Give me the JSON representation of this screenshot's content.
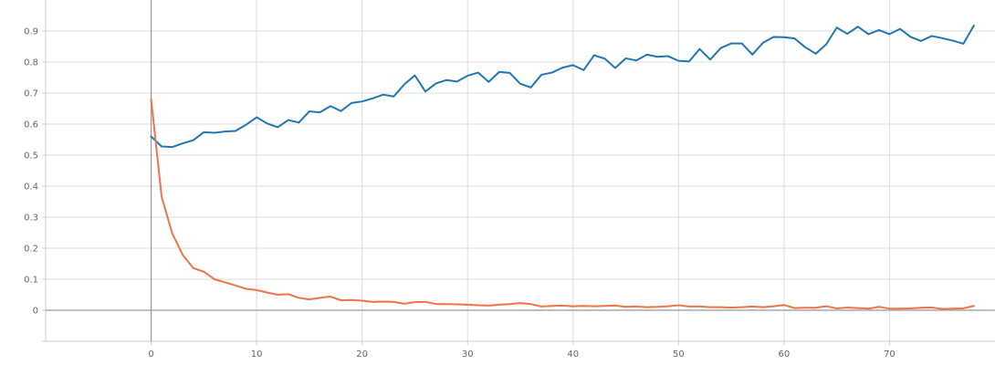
{
  "chart_data": {
    "type": "line",
    "title": "",
    "xlabel": "",
    "ylabel": "",
    "xlim": [
      -10,
      80
    ],
    "ylim": [
      -0.1,
      1.0
    ],
    "grid": true,
    "x_ticks": [
      0,
      10,
      20,
      30,
      40,
      50,
      60,
      70
    ],
    "y_ticks": [
      0,
      0.1,
      0.2,
      0.3,
      0.4,
      0.5,
      0.6,
      0.7,
      0.8,
      0.9
    ],
    "x_tick_labels": [
      "0",
      "10",
      "20",
      "30",
      "40",
      "50",
      "60",
      "70"
    ],
    "y_tick_labels": [
      "0",
      "0.1",
      "0.2",
      "0.3",
      "0.4",
      "0.5",
      "0.6",
      "0.7",
      "0.8",
      "0.9"
    ],
    "series": [
      {
        "color": "#1f77b4",
        "x": [
          0,
          1,
          2,
          3,
          4,
          5,
          6,
          7,
          8,
          9,
          10,
          11,
          12,
          13,
          14,
          15,
          16,
          17,
          18,
          19,
          20,
          21,
          22,
          23,
          24,
          25,
          26,
          27,
          28,
          29,
          30,
          31,
          32,
          33,
          34,
          35,
          36,
          37,
          38,
          39,
          40,
          41,
          42,
          43,
          44,
          45,
          46,
          47,
          48,
          49,
          50,
          51,
          52,
          53,
          54,
          55,
          56,
          57,
          58,
          59,
          60,
          61,
          62,
          63,
          64,
          65,
          66,
          67,
          68,
          69,
          70,
          71,
          72,
          73,
          74,
          75,
          76,
          77,
          78
        ],
        "y": [
          0.56,
          0.528,
          0.526,
          0.538,
          0.548,
          0.574,
          0.572,
          0.576,
          0.578,
          0.598,
          0.622,
          0.602,
          0.59,
          0.613,
          0.605,
          0.641,
          0.638,
          0.658,
          0.642,
          0.668,
          0.673,
          0.683,
          0.695,
          0.689,
          0.728,
          0.757,
          0.705,
          0.731,
          0.742,
          0.737,
          0.756,
          0.766,
          0.736,
          0.768,
          0.765,
          0.73,
          0.718,
          0.759,
          0.766,
          0.782,
          0.79,
          0.774,
          0.822,
          0.811,
          0.781,
          0.812,
          0.805,
          0.824,
          0.817,
          0.819,
          0.804,
          0.802,
          0.842,
          0.808,
          0.845,
          0.86,
          0.86,
          0.824,
          0.862,
          0.881,
          0.88,
          0.876,
          0.848,
          0.827,
          0.857,
          0.911,
          0.891,
          0.914,
          0.89,
          0.903,
          0.89,
          0.907,
          0.881,
          0.868,
          0.884,
          0.877,
          0.869,
          0.859,
          0.918
        ]
      },
      {
        "color": "#f07448",
        "x": [
          0,
          1,
          2,
          3,
          4,
          5,
          6,
          7,
          8,
          9,
          10,
          11,
          12,
          13,
          14,
          15,
          16,
          17,
          18,
          19,
          20,
          21,
          22,
          23,
          24,
          25,
          26,
          27,
          28,
          29,
          30,
          31,
          32,
          33,
          34,
          35,
          36,
          37,
          38,
          39,
          40,
          41,
          42,
          43,
          44,
          45,
          46,
          47,
          48,
          49,
          50,
          51,
          52,
          53,
          54,
          55,
          56,
          57,
          58,
          59,
          60,
          61,
          62,
          63,
          64,
          65,
          66,
          67,
          68,
          69,
          70,
          71,
          72,
          73,
          74,
          75,
          76,
          77,
          78
        ],
        "y": [
          0.68,
          0.365,
          0.248,
          0.178,
          0.136,
          0.124,
          0.1,
          0.09,
          0.08,
          0.069,
          0.065,
          0.057,
          0.05,
          0.052,
          0.04,
          0.035,
          0.04,
          0.044,
          0.032,
          0.033,
          0.031,
          0.027,
          0.028,
          0.027,
          0.021,
          0.026,
          0.027,
          0.02,
          0.02,
          0.019,
          0.018,
          0.016,
          0.015,
          0.018,
          0.02,
          0.023,
          0.02,
          0.012,
          0.014,
          0.015,
          0.013,
          0.014,
          0.013,
          0.014,
          0.015,
          0.011,
          0.012,
          0.01,
          0.011,
          0.013,
          0.016,
          0.012,
          0.012,
          0.01,
          0.01,
          0.009,
          0.01,
          0.012,
          0.01,
          0.013,
          0.017,
          0.007,
          0.008,
          0.008,
          0.013,
          0.006,
          0.009,
          0.007,
          0.005,
          0.011,
          0.005,
          0.005,
          0.006,
          0.008,
          0.009,
          0.004,
          0.005,
          0.006,
          0.014
        ]
      }
    ]
  }
}
